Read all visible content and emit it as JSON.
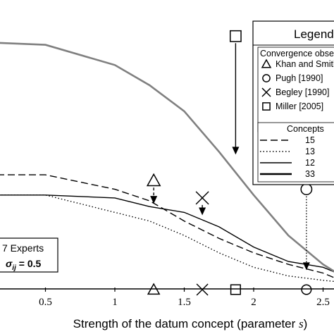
{
  "chart_data": {
    "type": "line",
    "xlabel": "Strength of the datum concept (parameter s)",
    "xlabel_main": "Strength of the datum concept (parameter ",
    "xlabel_var": "s",
    "xlabel_close": ")",
    "ylabel": "",
    "xlim": [
      0,
      2.6
    ],
    "ylim": [
      0,
      1.0
    ],
    "x_ticks": [
      0.5,
      1,
      1.5,
      2,
      2.5
    ],
    "x_tick_labels": [
      "0.5",
      "1",
      "1.5",
      "2",
      "2.5"
    ],
    "x": [
      0,
      0.5,
      1.0,
      1.25,
      1.5,
      1.75,
      2.0,
      2.25,
      2.5,
      2.6
    ],
    "series": [
      {
        "name": "15",
        "style": "dashed",
        "color": "#000000",
        "values": [
          0.39,
          0.39,
          0.34,
          0.3,
          0.23,
          0.17,
          0.12,
          0.08,
          0.05,
          0.03
        ]
      },
      {
        "name": "13",
        "style": "dotted",
        "color": "#000000",
        "values": [
          0.32,
          0.32,
          0.26,
          0.23,
          0.18,
          0.12,
          0.07,
          0.04,
          0.025,
          0.02
        ]
      },
      {
        "name": "12",
        "style": "solid",
        "color": "#000000",
        "values": [
          0.32,
          0.32,
          0.31,
          0.28,
          0.26,
          0.21,
          0.14,
          0.09,
          0.07,
          0.05
        ]
      },
      {
        "name": "33",
        "style": "solid-thick",
        "color": "#808080",
        "values": [
          0.85,
          0.84,
          0.77,
          0.7,
          0.61,
          0.47,
          0.32,
          0.18,
          0.08,
          0.05
        ]
      }
    ],
    "convergence_markers": [
      {
        "symbol": "triangle",
        "source": "Khan and Smith",
        "x": 1.28,
        "y_from": 0.37,
        "y_to": 0.29,
        "arrow": "dashed"
      },
      {
        "symbol": "x",
        "source": "Begley [1990]",
        "x": 1.63,
        "y_from": 0.31,
        "y_to": 0.25,
        "arrow": "solid"
      },
      {
        "symbol": "square",
        "source": "Miller [2005]",
        "x": 1.87,
        "y_from": 0.87,
        "y_to": 0.46,
        "arrow": "solid"
      },
      {
        "symbol": "circle",
        "source": "Pugh [1990]",
        "x": 2.38,
        "y_from": 0.34,
        "y_to": 0.06,
        "arrow": "dotted"
      }
    ],
    "axis_markers": [
      {
        "symbol": "triangle",
        "x": 1.28
      },
      {
        "symbol": "x",
        "x": 1.63
      },
      {
        "symbol": "square",
        "x": 1.87
      },
      {
        "symbol": "circle",
        "x": 2.38
      }
    ],
    "legend": {
      "title": "Legend",
      "group1_title": "Convergence observed",
      "entries1": [
        {
          "symbol": "triangle",
          "label": "Khan and Smith"
        },
        {
          "symbol": "circle",
          "label": "Pugh [1990]"
        },
        {
          "symbol": "x",
          "label": "Begley [1990]"
        },
        {
          "symbol": "square",
          "label": "Miller [2005]"
        }
      ],
      "group2_title": "Concepts",
      "entries2": [
        {
          "style": "dashed",
          "label": "15"
        },
        {
          "style": "dotted",
          "label": "13"
        },
        {
          "style": "solid",
          "label": "12"
        },
        {
          "style": "solid-thick",
          "label": "33"
        }
      ]
    },
    "annotation": {
      "line1": "7 Experts",
      "sigma_symbol": "σ",
      "sigma_sub": "ij",
      "sigma_value": " = 0.5"
    }
  }
}
